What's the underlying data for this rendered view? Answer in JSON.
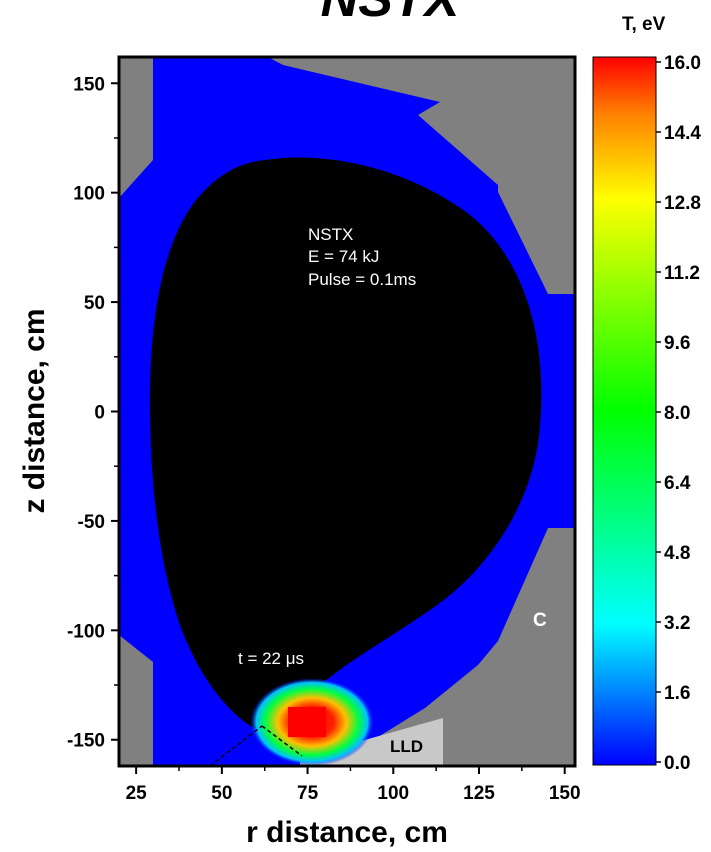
{
  "chart_data": {
    "type": "heatmap",
    "title": "NSTX",
    "xlabel": "r distance, cm",
    "ylabel": "z distance, cm",
    "xlim": [
      20,
      153
    ],
    "ylim": [
      -162,
      162
    ],
    "x_ticks": [
      25,
      50,
      75,
      100,
      125,
      150
    ],
    "y_ticks": [
      150,
      100,
      50,
      0,
      -50,
      -100,
      -150
    ],
    "colorbar": {
      "label": "T,  eV",
      "min": 0.0,
      "max": 16.0,
      "ticks": [
        "16.0",
        "14.4",
        "12.8",
        "11.2",
        "9.6",
        "8.0",
        "6.4",
        "4.8",
        "3.2",
        "1.6",
        "0.0"
      ]
    },
    "annotations": {
      "device": "NSTX",
      "energy": "E = 74 kJ",
      "pulse": "Pulse = 0.1ms",
      "time": "t = 22 μs",
      "wall_material": "C",
      "divertor": "LLD"
    },
    "regions": {
      "wall": "#808080",
      "vacuum_vessel_plasma_edge": "#0000ff",
      "core_plasma": "#000000",
      "lld": "#c0c0c0"
    },
    "hot_spot": {
      "r": 75,
      "z": -143,
      "peak_T_eV": 16.0
    }
  }
}
